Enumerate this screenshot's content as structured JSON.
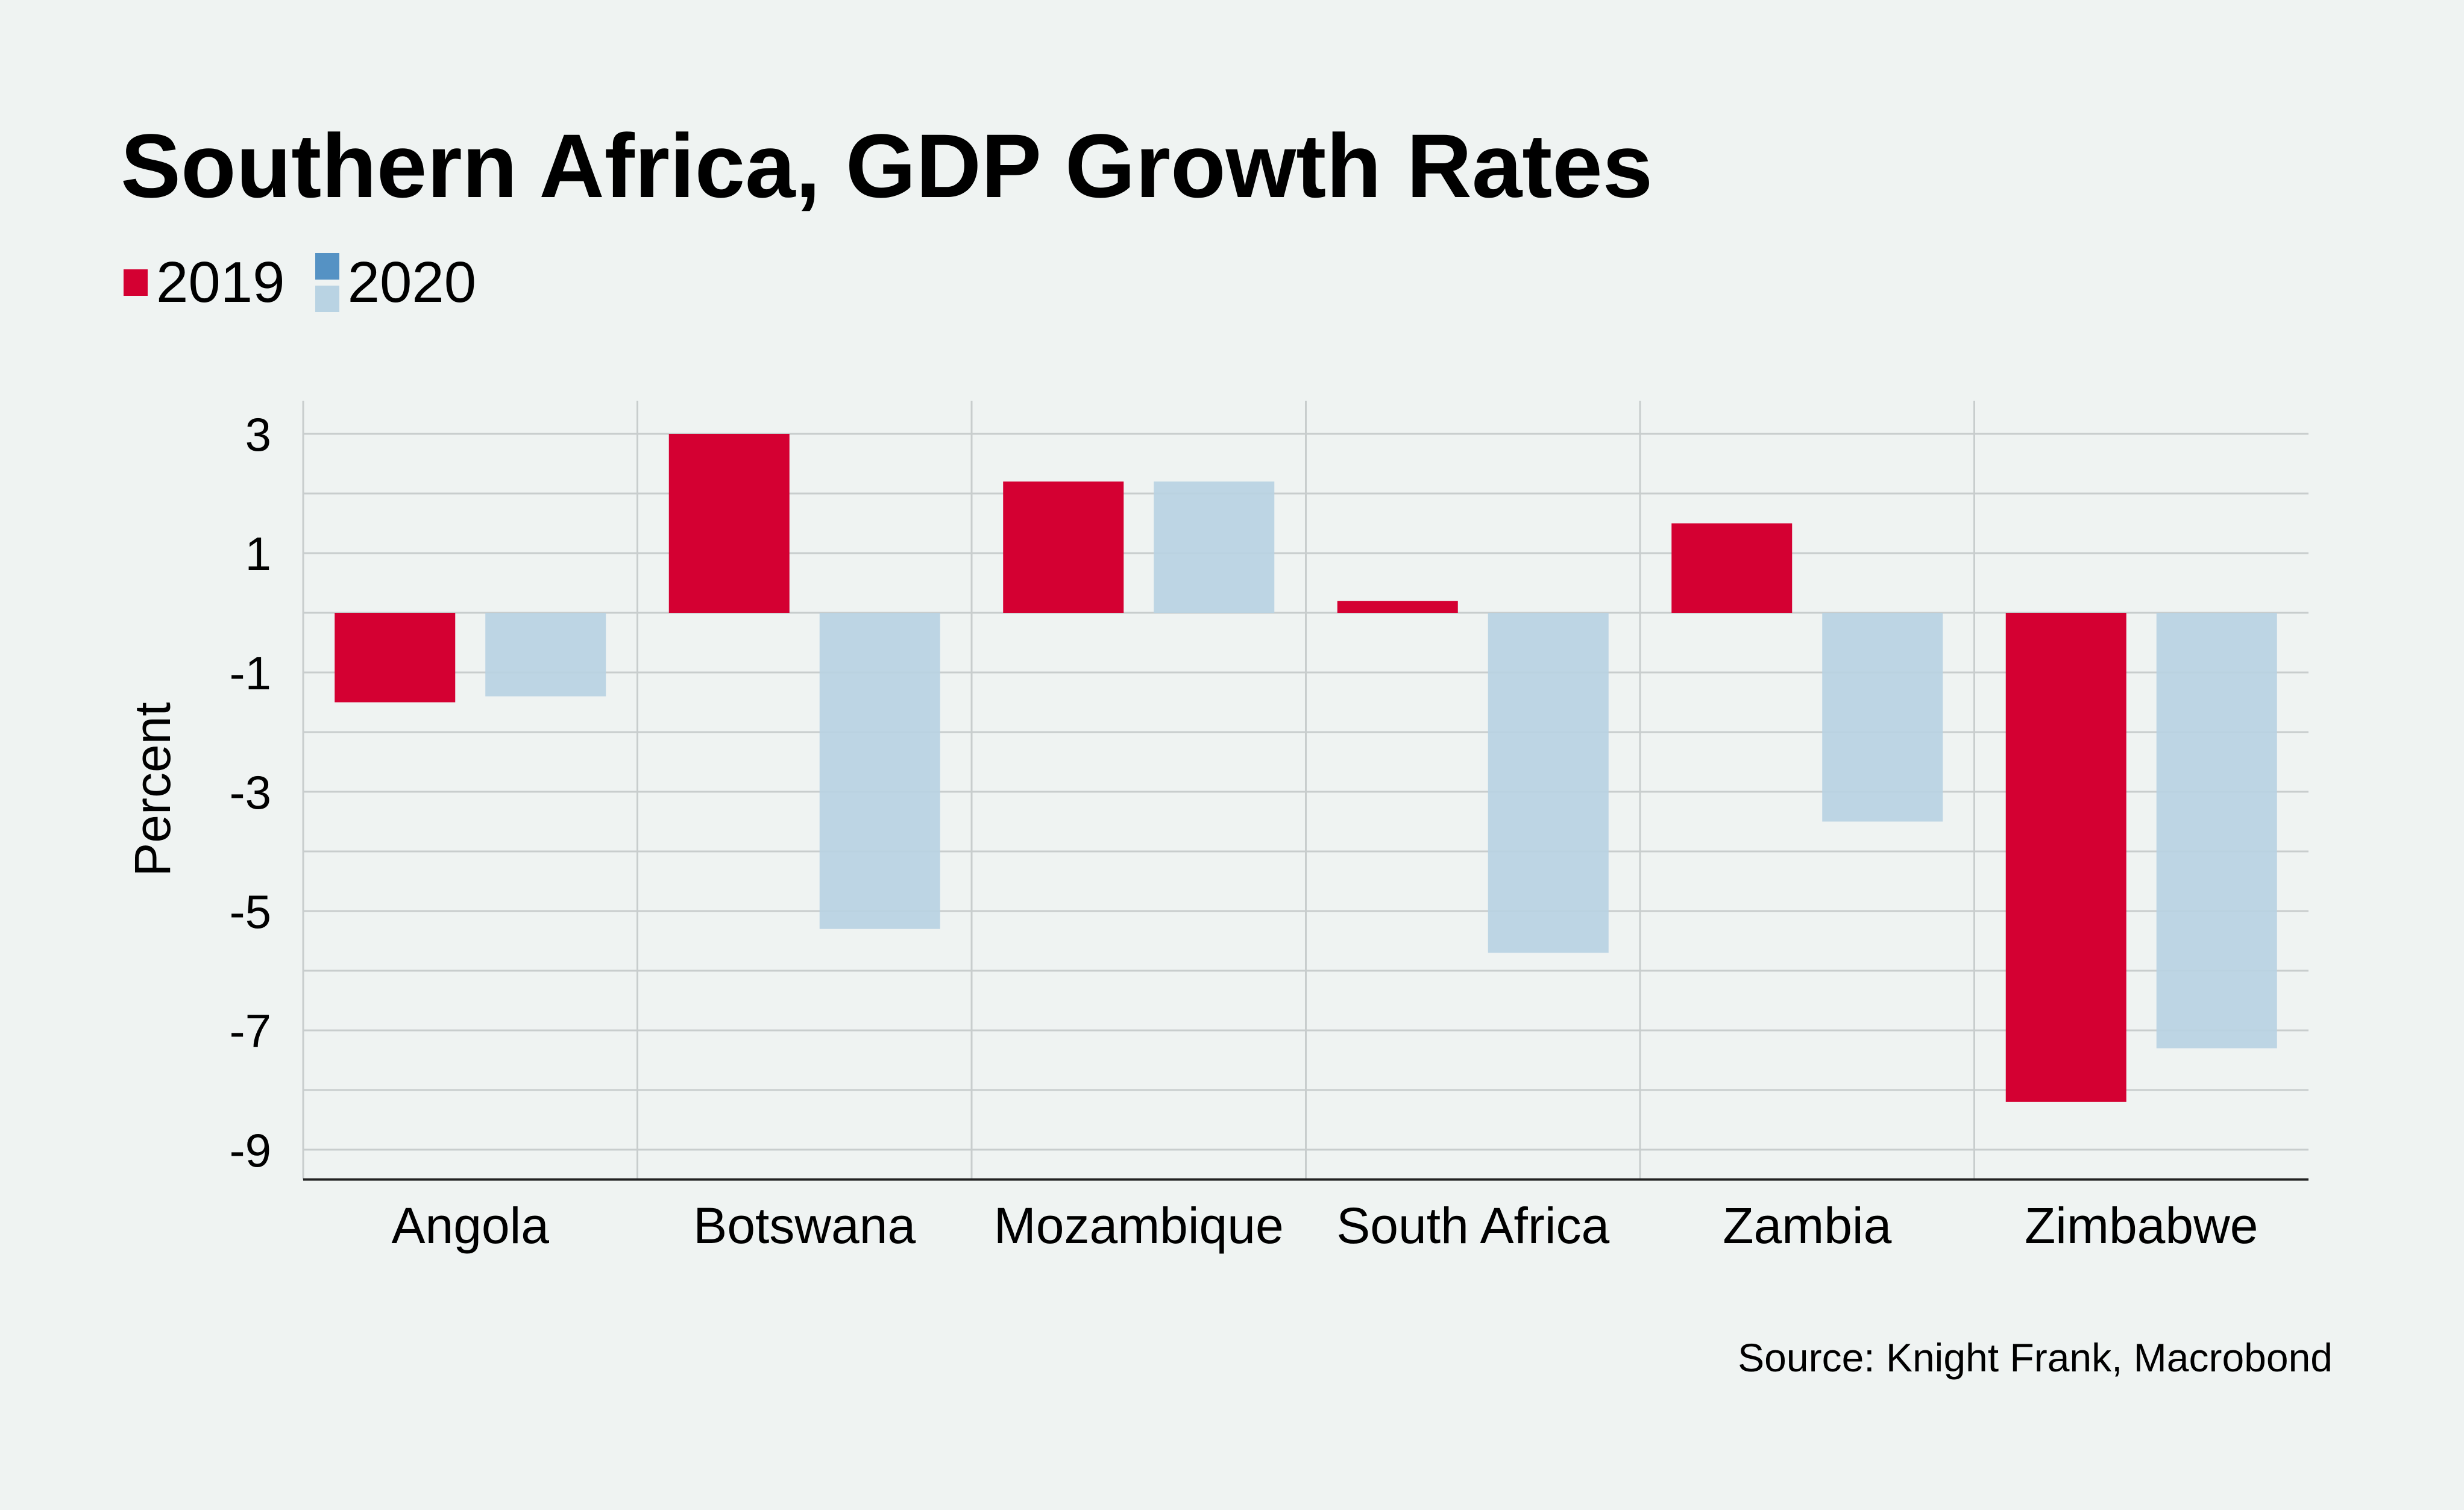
{
  "colors": {
    "series_2019": "#d40032",
    "series_2020": "#b9d3e3",
    "series_2020_legend_dark": "#5592c4",
    "grid": "#c8cdcd",
    "background": "#eff3f2"
  },
  "legend": {
    "items": [
      {
        "label": "2019"
      },
      {
        "label": "2020"
      }
    ]
  },
  "source": "Source: Knight Frank, Macrobond",
  "chart_data": {
    "type": "bar",
    "title": "Southern Africa, GDP Growth Rates",
    "xlabel": "",
    "ylabel": "Percent",
    "categories": [
      "Angola",
      "Botswana",
      "Mozambique",
      "South Africa",
      "Zambia",
      "Zimbabwe"
    ],
    "series": [
      {
        "name": "2019",
        "values": [
          -1.5,
          3.0,
          2.2,
          0.2,
          1.5,
          -8.2
        ]
      },
      {
        "name": "2020",
        "values": [
          -1.4,
          -5.3,
          2.2,
          -5.7,
          -3.5,
          -7.3
        ]
      }
    ],
    "yticks": [
      3,
      1,
      -1,
      -3,
      -5,
      -7,
      -9
    ],
    "ylim": [
      -9.5,
      3.5
    ],
    "grid": true,
    "legend_position": "top-left"
  }
}
